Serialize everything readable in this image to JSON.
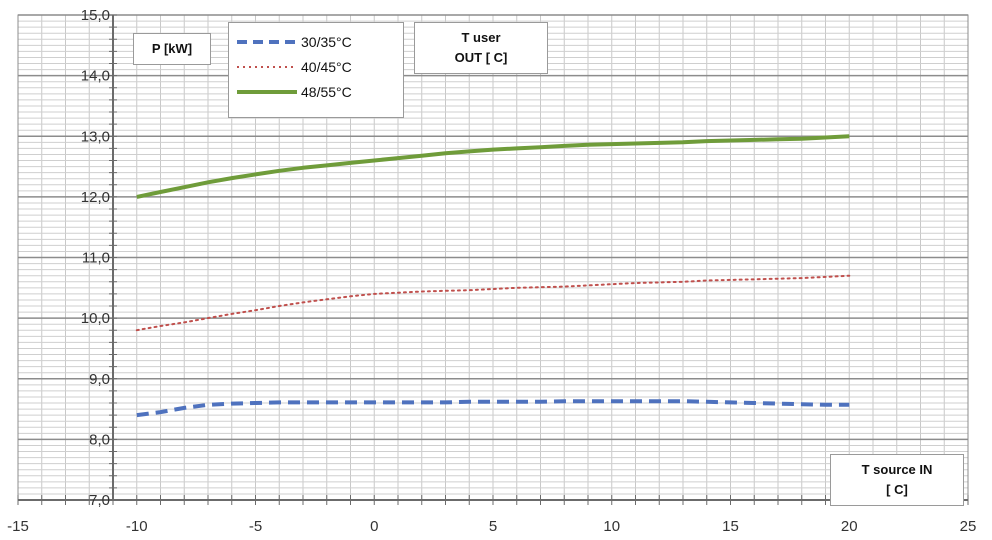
{
  "chart_data": {
    "type": "line",
    "x": [
      -10,
      -9,
      -8,
      -7,
      -6,
      -5,
      -4,
      -3,
      -2,
      -1,
      0,
      1,
      2,
      3,
      4,
      5,
      6,
      7,
      8,
      9,
      10,
      11,
      12,
      13,
      14,
      15,
      16,
      17,
      18,
      19,
      20
    ],
    "series": [
      {
        "name": "30/35°C",
        "color": "#4f72be",
        "style": "dashed",
        "values": [
          8.4,
          8.45,
          8.52,
          8.57,
          8.59,
          8.6,
          8.61,
          8.61,
          8.61,
          8.61,
          8.61,
          8.61,
          8.61,
          8.61,
          8.62,
          8.62,
          8.62,
          8.62,
          8.63,
          8.63,
          8.63,
          8.63,
          8.63,
          8.63,
          8.62,
          8.61,
          8.6,
          8.59,
          8.58,
          8.57,
          8.57
        ]
      },
      {
        "name": "40/45°C",
        "color": "#c0504d",
        "style": "dotted",
        "values": [
          9.8,
          9.87,
          9.93,
          10.0,
          10.07,
          10.13,
          10.2,
          10.26,
          10.31,
          10.36,
          10.4,
          10.42,
          10.44,
          10.45,
          10.46,
          10.48,
          10.5,
          10.51,
          10.52,
          10.54,
          10.56,
          10.58,
          10.59,
          10.6,
          10.62,
          10.63,
          10.64,
          10.65,
          10.66,
          10.68,
          10.7
        ]
      },
      {
        "name": "48/55°C",
        "color": "#6f9c3a",
        "style": "solid",
        "values": [
          12.0,
          12.08,
          12.16,
          12.24,
          12.31,
          12.37,
          12.43,
          12.48,
          12.52,
          12.56,
          12.6,
          12.64,
          12.68,
          12.72,
          12.75,
          12.78,
          12.8,
          12.82,
          12.84,
          12.86,
          12.87,
          12.88,
          12.89,
          12.9,
          12.92,
          12.93,
          12.94,
          12.95,
          12.96,
          12.98,
          13.0
        ]
      }
    ],
    "xlim": [
      -15,
      25
    ],
    "ylim": [
      7,
      15
    ],
    "xticks": [
      -15,
      -10,
      -5,
      0,
      5,
      10,
      15,
      20,
      25
    ],
    "yticks": [
      "15,0",
      "14,0",
      "13,0",
      "12,0",
      "11,0",
      "10,0",
      "9,0",
      "8,0",
      "7,0"
    ],
    "ylabel": "P [kW]",
    "legend_title": [
      "T user",
      "OUT [ C]"
    ],
    "xlabel": [
      "T source IN",
      "[ C]"
    ],
    "grid": true,
    "legend_position": "top-left"
  }
}
